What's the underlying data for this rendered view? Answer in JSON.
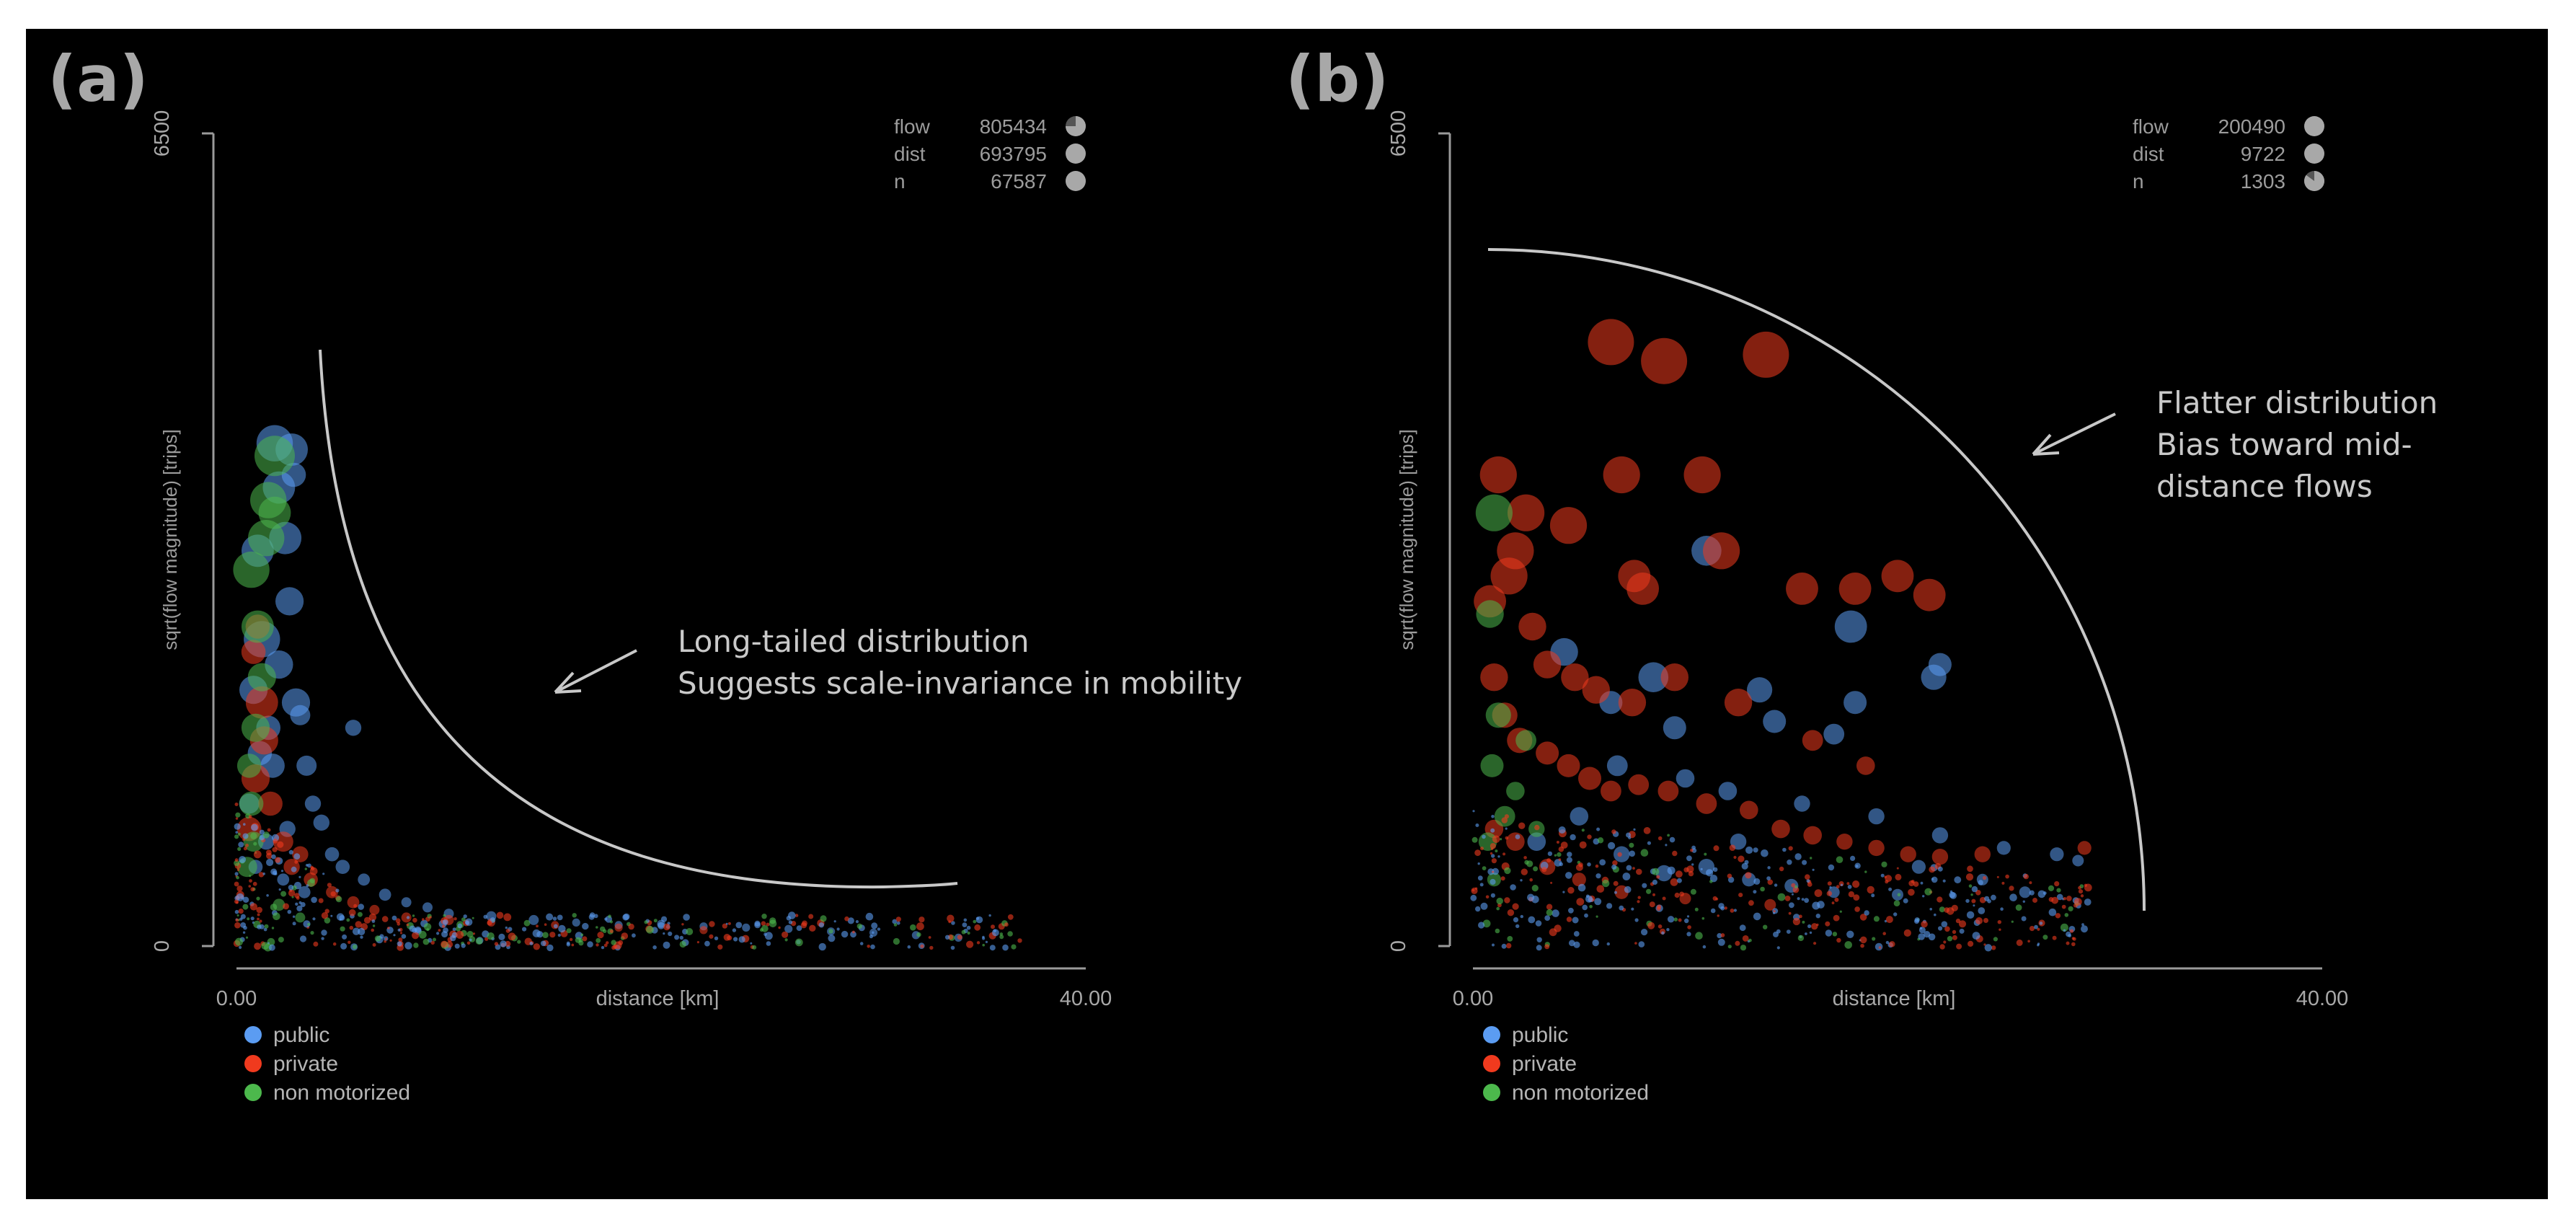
{
  "colors": {
    "background": "#000000",
    "public": "#5b9cf2",
    "private": "#f03a1e",
    "non_motorized": "#4cb84c",
    "text": "#a8a8a8"
  },
  "chart_data": [
    {
      "panel": "(a)",
      "type": "scatter",
      "xlabel": "distance [km]",
      "ylabel": "sqrt(flow magnitude) [trips]",
      "xlim": [
        0,
        40
      ],
      "ylim": [
        0,
        6500
      ],
      "x_ticks": [
        "0.00",
        "40.00"
      ],
      "y_ticks": [
        "0",
        "6500"
      ],
      "legend": [
        {
          "label": "public",
          "color_key": "public"
        },
        {
          "label": "private",
          "color_key": "private"
        },
        {
          "label": "non motorized",
          "color_key": "non_motorized"
        }
      ],
      "stats": [
        {
          "label": "flow",
          "value": "805434",
          "fill": 0.75
        },
        {
          "label": "dist",
          "value": "693795",
          "fill": 1.0
        },
        {
          "label": "n",
          "value": "67587",
          "fill": 1.0
        }
      ],
      "annotation": [
        "Long-tailed distribution",
        "Suggests scale-invariance in mobility"
      ],
      "envelope_shape": "long-tail",
      "series": [
        {
          "name": "public",
          "points": [
            [
              0.6,
              1200
            ],
            [
              0.8,
              2100
            ],
            [
              1.0,
              3200
            ],
            [
              1.2,
              2500
            ],
            [
              1.5,
              1800
            ],
            [
              1.8,
              4050
            ],
            [
              2.0,
              3700
            ],
            [
              2.3,
              3300
            ],
            [
              2.5,
              2800
            ],
            [
              2.0,
              2300
            ],
            [
              1.7,
              1500
            ],
            [
              2.6,
              4000
            ],
            [
              2.7,
              3800
            ],
            [
              3.0,
              1900
            ],
            [
              3.3,
              1500
            ],
            [
              2.4,
              1000
            ],
            [
              3.6,
              1200
            ],
            [
              4.0,
              1050
            ],
            [
              4.5,
              800
            ],
            [
              5.0,
              700
            ],
            [
              6.0,
              600
            ],
            [
              7.0,
              480
            ],
            [
              8.0,
              420
            ],
            [
              9.0,
              380
            ],
            [
              10.0,
              330
            ],
            [
              12.0,
              310
            ],
            [
              14.0,
              280
            ],
            [
              16.0,
              260
            ],
            [
              18.0,
              240
            ],
            [
              20.0,
              250
            ],
            [
              22.0,
              230
            ],
            [
              24.0,
              220
            ],
            [
              26.0,
              210
            ],
            [
              28.0,
              190
            ],
            [
              30.0,
              180
            ],
            [
              32.0,
              160
            ],
            [
              34.0,
              140
            ],
            [
              1.4,
              900
            ],
            [
              0.9,
              700
            ],
            [
              2.2,
              600
            ],
            [
              3.2,
              500
            ],
            [
              2.8,
              2000
            ],
            [
              1.1,
              1600
            ],
            [
              5.5,
              1800
            ]
          ],
          "sizes": [
            10,
            14,
            16,
            18,
            12,
            18,
            16,
            16,
            14,
            14,
            12,
            16,
            12,
            10,
            10,
            8,
            8,
            8,
            7,
            7,
            6,
            6,
            5,
            5,
            5,
            5,
            5,
            4,
            4,
            4,
            4,
            4,
            4,
            4,
            4,
            4,
            4,
            8,
            7,
            6,
            6,
            14,
            12,
            8
          ]
        },
        {
          "name": "private",
          "points": [
            [
              0.6,
              1000
            ],
            [
              0.9,
              1400
            ],
            [
              1.2,
              2000
            ],
            [
              1.0,
              2600
            ],
            [
              1.6,
              1200
            ],
            [
              2.2,
              900
            ],
            [
              2.6,
              700
            ],
            [
              3.0,
              800
            ],
            [
              3.5,
              600
            ],
            [
              4.5,
              500
            ],
            [
              5.5,
              420
            ],
            [
              6.5,
              360
            ],
            [
              8.0,
              300
            ],
            [
              10.0,
              280
            ],
            [
              12.0,
              260
            ],
            [
              15.0,
              240
            ],
            [
              18.0,
              220
            ],
            [
              22.0,
              200
            ],
            [
              1.3,
              1700
            ],
            [
              0.8,
              2400
            ]
          ],
          "sizes": [
            12,
            14,
            16,
            12,
            12,
            10,
            8,
            8,
            7,
            6,
            6,
            5,
            5,
            5,
            4,
            4,
            4,
            4,
            14,
            12
          ]
        },
        {
          "name": "non_motorized",
          "points": [
            [
              0.5,
              700
            ],
            [
              0.7,
              1200
            ],
            [
              0.9,
              1800
            ],
            [
              1.0,
              2600
            ],
            [
              0.7,
              3050
            ],
            [
              1.4,
              3300
            ],
            [
              1.5,
              3600
            ],
            [
              1.8,
              3950
            ],
            [
              1.2,
              2200
            ],
            [
              0.6,
              1500
            ],
            [
              1.8,
              3500
            ],
            [
              0.8,
              900
            ],
            [
              2.0,
              400
            ],
            [
              3.0,
              300
            ]
          ],
          "sizes": [
            10,
            12,
            14,
            16,
            18,
            18,
            18,
            20,
            14,
            12,
            16,
            10,
            6,
            5
          ]
        }
      ]
    },
    {
      "panel": "(b)",
      "type": "scatter",
      "xlabel": "distance [km]",
      "ylabel": "sqrt(flow magnitude) [trips]",
      "xlim": [
        0,
        40
      ],
      "ylim": [
        0,
        6500
      ],
      "x_ticks": [
        "0.00",
        "40.00"
      ],
      "y_ticks": [
        "0",
        "6500"
      ],
      "legend": [
        {
          "label": "public",
          "color_key": "public"
        },
        {
          "label": "private",
          "color_key": "private"
        },
        {
          "label": "non motorized",
          "color_key": "non_motorized"
        }
      ],
      "stats": [
        {
          "label": "flow",
          "value": "200490",
          "fill": 1.0
        },
        {
          "label": "dist",
          "value": "9722",
          "fill": 1.0
        },
        {
          "label": "n",
          "value": "1303",
          "fill": 0.85
        }
      ],
      "annotation": [
        "Flatter distribution",
        "Bias toward mid-",
        "distance flows"
      ],
      "envelope_shape": "quarter-circle",
      "series": [
        {
          "name": "public",
          "points": [
            [
              11.0,
              3200
            ],
            [
              17.8,
              2600
            ],
            [
              4.3,
              2400
            ],
            [
              8.5,
              2200
            ],
            [
              13.5,
              2100
            ],
            [
              21.7,
              2200
            ],
            [
              22.0,
              2300
            ],
            [
              18.0,
              2000
            ],
            [
              6.5,
              2000
            ],
            [
              9.5,
              1800
            ],
            [
              14.2,
              1850
            ],
            [
              17.0,
              1750
            ],
            [
              6.8,
              1500
            ],
            [
              10.0,
              1400
            ],
            [
              12.0,
              1300
            ],
            [
              15.5,
              1200
            ],
            [
              19.0,
              1100
            ],
            [
              22.0,
              950
            ],
            [
              25.0,
              850
            ],
            [
              27.5,
              800
            ],
            [
              28.5,
              750
            ],
            [
              3.0,
              900
            ],
            [
              7.0,
              800
            ],
            [
              9.0,
              650
            ],
            [
              11.0,
              700
            ],
            [
              13.0,
              600
            ],
            [
              15.0,
              550
            ],
            [
              17.0,
              500
            ],
            [
              20.0,
              480
            ],
            [
              5.0,
              1100
            ],
            [
              12.5,
              900
            ],
            [
              21.0,
              700
            ],
            [
              24.0,
              600
            ],
            [
              26.0,
              500
            ]
          ],
          "sizes": [
            13,
            14,
            12,
            13,
            11,
            11,
            10,
            10,
            10,
            10,
            10,
            9,
            9,
            8,
            8,
            7,
            7,
            7,
            6,
            6,
            5,
            8,
            7,
            7,
            7,
            6,
            6,
            5,
            5,
            8,
            7,
            6,
            5,
            5
          ]
        },
        {
          "name": "private",
          "points": [
            [
              6.5,
              4850
            ],
            [
              9.0,
              4700
            ],
            [
              13.8,
              4750
            ],
            [
              7.0,
              3800
            ],
            [
              10.8,
              3800
            ],
            [
              1.2,
              3800
            ],
            [
              2.5,
              3500
            ],
            [
              4.5,
              3400
            ],
            [
              2.0,
              3200
            ],
            [
              11.7,
              3200
            ],
            [
              1.7,
              3000
            ],
            [
              7.6,
              3000
            ],
            [
              8.0,
              2900
            ],
            [
              15.5,
              2900
            ],
            [
              18.0,
              2900
            ],
            [
              20.0,
              3000
            ],
            [
              21.5,
              2850
            ],
            [
              0.8,
              2800
            ],
            [
              2.8,
              2600
            ],
            [
              3.5,
              2300
            ],
            [
              4.8,
              2200
            ],
            [
              5.8,
              2100
            ],
            [
              7.5,
              2000
            ],
            [
              9.5,
              2200
            ],
            [
              12.5,
              2000
            ],
            [
              1.0,
              2200
            ],
            [
              1.5,
              1900
            ],
            [
              2.2,
              1700
            ],
            [
              3.5,
              1600
            ],
            [
              4.5,
              1500
            ],
            [
              5.5,
              1400
            ],
            [
              6.5,
              1300
            ],
            [
              7.8,
              1350
            ],
            [
              9.2,
              1300
            ],
            [
              11.0,
              1200
            ],
            [
              13.0,
              1150
            ],
            [
              14.5,
              1000
            ],
            [
              16.0,
              950
            ],
            [
              17.5,
              900
            ],
            [
              19.0,
              850
            ],
            [
              20.5,
              800
            ],
            [
              22.0,
              780
            ],
            [
              24.0,
              800
            ],
            [
              1.0,
              1000
            ],
            [
              2.0,
              900
            ],
            [
              3.5,
              700
            ],
            [
              5.0,
              600
            ],
            [
              7.0,
              500
            ],
            [
              10.0,
              450
            ],
            [
              14.0,
              400
            ],
            [
              28.8,
              850
            ],
            [
              16.0,
              1700
            ],
            [
              18.5,
              1500
            ]
          ],
          "sizes": [
            20,
            20,
            20,
            16,
            16,
            16,
            16,
            16,
            16,
            16,
            16,
            14,
            14,
            14,
            14,
            14,
            14,
            14,
            12,
            12,
            12,
            12,
            12,
            12,
            12,
            12,
            11,
            11,
            10,
            10,
            10,
            9,
            9,
            9,
            9,
            8,
            8,
            8,
            7,
            7,
            7,
            7,
            7,
            8,
            8,
            7,
            6,
            6,
            5,
            5,
            6,
            9,
            8
          ]
        },
        {
          "name": "non_motorized",
          "points": [
            [
              1.0,
              3500
            ],
            [
              0.8,
              2700
            ],
            [
              1.2,
              1900
            ],
            [
              0.9,
              1500
            ],
            [
              2.5,
              1700
            ],
            [
              1.5,
              1100
            ],
            [
              0.7,
              900
            ],
            [
              2.0,
              1300
            ],
            [
              3.0,
              1000
            ],
            [
              1.0,
              600
            ]
          ],
          "sizes": [
            16,
            12,
            11,
            10,
            9,
            9,
            8,
            8,
            7,
            6
          ]
        }
      ]
    }
  ]
}
